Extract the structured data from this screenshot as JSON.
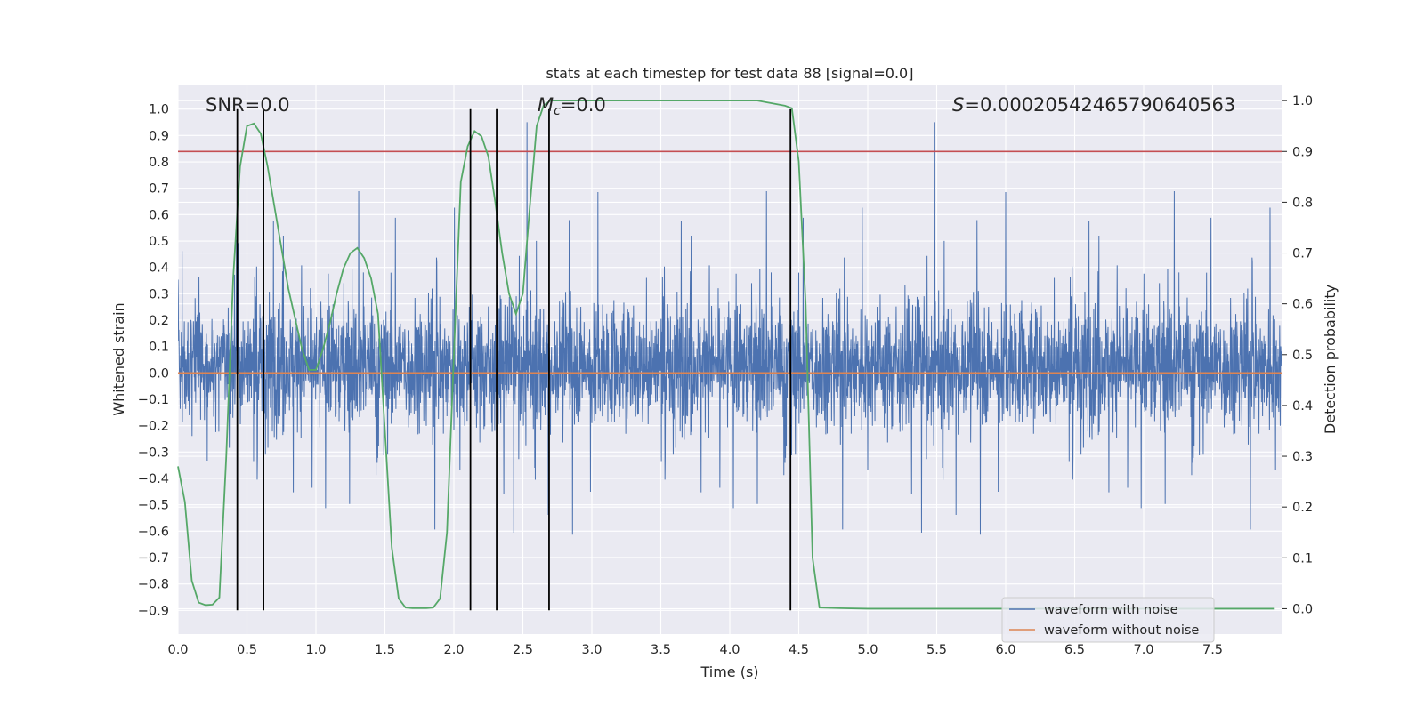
{
  "chart_data": {
    "type": "line",
    "title": "stats at each timestep for test data 88 [signal=0.0]",
    "xlabel": "Time (s)",
    "ylabel": "Whitened strain",
    "y2label": "Detection probability",
    "xlim": [
      0,
      8
    ],
    "ylim": [
      -0.99,
      1.09
    ],
    "y2lim": [
      -0.05,
      1.03
    ],
    "xticks": [
      "0.0",
      "0.5",
      "1.0",
      "1.5",
      "2.0",
      "2.5",
      "3.0",
      "3.5",
      "4.0",
      "4.5",
      "5.0",
      "5.5",
      "6.0",
      "6.5",
      "7.0",
      "7.5"
    ],
    "yticks": [
      "1.0",
      "0.9",
      "0.8",
      "0.7",
      "0.6",
      "0.5",
      "0.4",
      "0.3",
      "0.2",
      "0.1",
      "0.0",
      "−0.1",
      "−0.2",
      "−0.3",
      "−0.4",
      "−0.5",
      "−0.6",
      "−0.7",
      "−0.8",
      "−0.9"
    ],
    "y2ticks": [
      "1.0",
      "0.9",
      "0.8",
      "0.7",
      "0.6",
      "0.5",
      "0.4",
      "0.3",
      "0.2",
      "0.1",
      "0.0"
    ],
    "grid": true,
    "legend_placement": "lower-right",
    "annotations": {
      "snr": "SNR=0.0",
      "mc_prefix": "M",
      "mc_sub": "c",
      "mc_value": "=0.0",
      "s_prefix": "S",
      "s_value": "=0.00020542465790640563"
    },
    "series": [
      {
        "name": "waveform with noise",
        "color": "#4c72b0",
        "style": "dense noise trace, approx. range -0.75 to 1.0"
      },
      {
        "name": "waveform without noise",
        "color": "#dd8452",
        "x": [
          0,
          8
        ],
        "y": [
          0.0,
          0.0
        ]
      }
    ],
    "detection_probability": {
      "color": "#55a868",
      "x": [
        0.0,
        0.05,
        0.1,
        0.15,
        0.2,
        0.25,
        0.3,
        0.35,
        0.4,
        0.45,
        0.5,
        0.55,
        0.6,
        0.65,
        0.7,
        0.75,
        0.8,
        0.85,
        0.9,
        0.95,
        1.0,
        1.05,
        1.1,
        1.15,
        1.2,
        1.25,
        1.3,
        1.35,
        1.4,
        1.45,
        1.5,
        1.55,
        1.6,
        1.65,
        1.7,
        1.75,
        1.8,
        1.85,
        1.9,
        1.95,
        2.0,
        2.05,
        2.1,
        2.15,
        2.2,
        2.25,
        2.3,
        2.35,
        2.4,
        2.45,
        2.5,
        2.55,
        2.6,
        2.65,
        2.7,
        2.75,
        2.8,
        2.85,
        2.9,
        3.0,
        3.5,
        4.0,
        4.2,
        4.4,
        4.45,
        4.5,
        4.55,
        4.6,
        4.65,
        4.8,
        5.0,
        6.0,
        7.0,
        7.95
      ],
      "y": [
        0.28,
        0.21,
        0.055,
        0.012,
        0.007,
        0.008,
        0.022,
        0.3,
        0.65,
        0.87,
        0.95,
        0.955,
        0.935,
        0.87,
        0.79,
        0.71,
        0.63,
        0.57,
        0.51,
        0.47,
        0.47,
        0.51,
        0.56,
        0.62,
        0.67,
        0.7,
        0.71,
        0.69,
        0.65,
        0.58,
        0.35,
        0.12,
        0.02,
        0.002,
        0.001,
        0.001,
        0.001,
        0.002,
        0.02,
        0.15,
        0.5,
        0.84,
        0.91,
        0.94,
        0.93,
        0.89,
        0.8,
        0.7,
        0.62,
        0.58,
        0.62,
        0.79,
        0.95,
        0.99,
        1.0,
        1.0,
        1.0,
        1.0,
        1.0,
        1.0,
        1.0,
        1.0,
        1.0,
        0.99,
        0.985,
        0.88,
        0.6,
        0.1,
        0.002,
        0.001,
        0.0,
        0.0,
        0.0,
        0.0
      ]
    },
    "threshold": {
      "color": "#c44e52",
      "y2": 0.9
    },
    "vertical_markers": {
      "color": "#000000",
      "x": [
        0.43,
        0.62,
        2.12,
        2.31,
        2.69,
        4.44
      ],
      "y_range": [
        -0.9,
        1.0
      ]
    }
  }
}
